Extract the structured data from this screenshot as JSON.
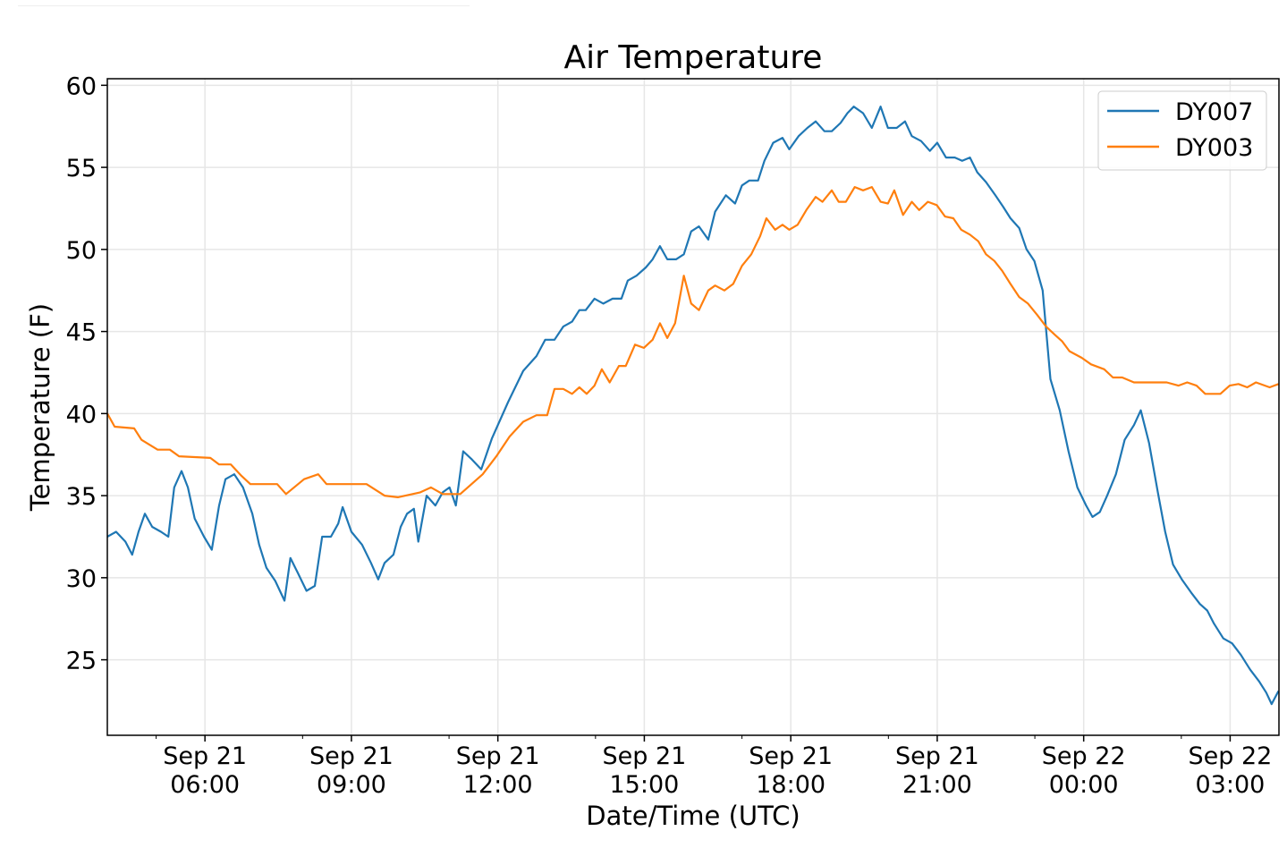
{
  "chart_data": {
    "type": "line",
    "title": "Air Temperature",
    "xlabel": "Date/Time (UTC)",
    "ylabel": "Temperature (F)",
    "x_unit": "hours since Sep 21 04:00 UTC",
    "xlim": [
      0,
      24
    ],
    "ylim": [
      20.4,
      60.4
    ],
    "grid": true,
    "legend_position": "top-right",
    "yticks": [
      25,
      30,
      35,
      40,
      45,
      50,
      55,
      60
    ],
    "xticks": [
      {
        "x": 2,
        "line1": "Sep 21",
        "line2": "06:00"
      },
      {
        "x": 5,
        "line1": "Sep 21",
        "line2": "09:00"
      },
      {
        "x": 8,
        "line1": "Sep 21",
        "line2": "12:00"
      },
      {
        "x": 11,
        "line1": "Sep 21",
        "line2": "15:00"
      },
      {
        "x": 14,
        "line1": "Sep 21",
        "line2": "18:00"
      },
      {
        "x": 17,
        "line1": "Sep 21",
        "line2": "21:00"
      },
      {
        "x": 20,
        "line1": "Sep 22",
        "line2": "00:00"
      },
      {
        "x": 23,
        "line1": "Sep 22",
        "line2": "03:00"
      }
    ],
    "series": [
      {
        "name": "DY007",
        "color": "#1f77b4",
        "x": [
          0,
          0.18,
          0.37,
          0.51,
          0.64,
          0.77,
          0.92,
          1.1,
          1.25,
          1.37,
          1.52,
          1.65,
          1.79,
          1.98,
          2.14,
          2.29,
          2.42,
          2.6,
          2.78,
          2.97,
          3.11,
          3.26,
          3.44,
          3.63,
          3.75,
          3.9,
          4.08,
          4.25,
          4.4,
          4.58,
          4.73,
          4.82,
          5.0,
          5.22,
          5.4,
          5.55,
          5.68,
          5.86,
          6.01,
          6.14,
          6.28,
          6.37,
          6.54,
          6.72,
          6.87,
          7.01,
          7.14,
          7.29,
          7.47,
          7.66,
          7.88,
          8.21,
          8.52,
          8.79,
          8.97,
          9.16,
          9.34,
          9.52,
          9.67,
          9.8,
          9.98,
          10.16,
          10.35,
          10.53,
          10.66,
          10.84,
          11.03,
          11.17,
          11.32,
          11.47,
          11.65,
          11.81,
          11.96,
          12.12,
          12.31,
          12.45,
          12.67,
          12.86,
          13.0,
          13.15,
          13.33,
          13.46,
          13.64,
          13.83,
          13.97,
          14.16,
          14.34,
          14.51,
          14.69,
          14.84,
          15.02,
          15.16,
          15.29,
          15.48,
          15.66,
          15.84,
          15.99,
          16.17,
          16.34,
          16.48,
          16.67,
          16.85,
          17.0,
          17.18,
          17.36,
          17.51,
          17.67,
          17.82,
          18.0,
          18.19,
          18.35,
          18.5,
          18.68,
          18.83,
          18.99,
          19.16,
          19.32,
          19.51,
          19.69,
          19.87,
          20.05,
          20.18,
          20.33,
          20.48,
          20.66,
          20.84,
          21.03,
          21.17,
          21.34,
          21.52,
          21.67,
          21.83,
          22.01,
          22.2,
          22.38,
          22.53,
          22.67,
          22.86,
          23.04,
          23.22,
          23.41,
          23.59,
          23.74,
          23.85,
          23.99
        ],
        "y": [
          32.5,
          32.8,
          32.2,
          31.4,
          32.8,
          33.9,
          33.1,
          32.8,
          32.5,
          35.5,
          36.5,
          35.5,
          33.6,
          32.5,
          31.7,
          34.4,
          36.0,
          36.3,
          35.5,
          33.9,
          32.0,
          30.6,
          29.8,
          28.6,
          31.2,
          30.3,
          29.2,
          29.5,
          32.5,
          32.5,
          33.3,
          34.3,
          32.8,
          32.0,
          30.9,
          29.9,
          30.9,
          31.4,
          33.1,
          33.9,
          34.2,
          32.2,
          35.0,
          34.4,
          35.2,
          35.5,
          34.4,
          37.7,
          37.2,
          36.6,
          38.5,
          40.7,
          42.6,
          43.5,
          44.5,
          44.5,
          45.3,
          45.6,
          46.3,
          46.3,
          47.0,
          46.7,
          47.0,
          47.0,
          48.1,
          48.4,
          48.9,
          49.4,
          50.2,
          49.4,
          49.4,
          49.7,
          51.1,
          51.4,
          50.6,
          52.3,
          53.3,
          52.8,
          53.9,
          54.2,
          54.2,
          55.4,
          56.5,
          56.8,
          56.1,
          56.9,
          57.4,
          57.8,
          57.2,
          57.2,
          57.7,
          58.3,
          58.7,
          58.3,
          57.4,
          58.7,
          57.4,
          57.4,
          57.8,
          56.9,
          56.6,
          56.0,
          56.5,
          55.6,
          55.6,
          55.4,
          55.6,
          54.7,
          54.1,
          53.3,
          52.6,
          51.9,
          51.3,
          50.0,
          49.3,
          47.5,
          42.1,
          40.2,
          37.7,
          35.5,
          34.4,
          33.7,
          34.0,
          35.0,
          36.3,
          38.4,
          39.3,
          40.2,
          38.2,
          35.2,
          32.8,
          30.8,
          29.9,
          29.1,
          28.4,
          28.0,
          27.2,
          26.3,
          26.0,
          25.3,
          24.4,
          23.7,
          23.0,
          22.3,
          23.1
        ]
      },
      {
        "name": "DY003",
        "color": "#ff7f0e",
        "x": [
          0,
          0.15,
          0.55,
          0.7,
          1.03,
          1.28,
          1.47,
          2.11,
          2.29,
          2.53,
          2.75,
          2.93,
          3.48,
          3.66,
          4.03,
          4.32,
          4.49,
          5.31,
          5.68,
          5.95,
          6.41,
          6.63,
          6.87,
          7.23,
          7.69,
          7.97,
          8.24,
          8.52,
          8.79,
          9.01,
          9.16,
          9.34,
          9.52,
          9.67,
          9.82,
          9.98,
          10.13,
          10.29,
          10.48,
          10.62,
          10.81,
          10.99,
          11.17,
          11.32,
          11.47,
          11.63,
          11.81,
          11.96,
          12.12,
          12.31,
          12.45,
          12.64,
          12.82,
          13.0,
          13.19,
          13.37,
          13.5,
          13.68,
          13.83,
          13.97,
          14.14,
          14.32,
          14.51,
          14.65,
          14.84,
          14.98,
          15.13,
          15.31,
          15.48,
          15.66,
          15.84,
          15.99,
          16.12,
          16.3,
          16.48,
          16.63,
          16.81,
          16.99,
          17.16,
          17.33,
          17.49,
          17.67,
          17.84,
          18.0,
          18.17,
          18.33,
          18.5,
          18.68,
          18.86,
          19.05,
          19.23,
          19.41,
          19.56,
          19.71,
          19.96,
          20.15,
          20.42,
          20.6,
          20.79,
          21.03,
          21.7,
          21.94,
          22.12,
          22.31,
          22.49,
          22.8,
          22.99,
          23.17,
          23.35,
          23.53,
          23.81,
          23.99
        ],
        "y": [
          40.0,
          39.2,
          39.1,
          38.4,
          37.8,
          37.8,
          37.4,
          37.3,
          36.9,
          36.9,
          36.2,
          35.7,
          35.7,
          35.1,
          36.0,
          36.3,
          35.7,
          35.7,
          35.0,
          34.9,
          35.2,
          35.5,
          35.1,
          35.1,
          36.3,
          37.4,
          38.6,
          39.5,
          39.9,
          39.9,
          41.5,
          41.5,
          41.2,
          41.6,
          41.2,
          41.7,
          42.7,
          41.9,
          42.9,
          42.9,
          44.2,
          44.0,
          44.5,
          45.5,
          44.6,
          45.5,
          48.4,
          46.7,
          46.3,
          47.5,
          47.8,
          47.5,
          47.9,
          49.0,
          49.7,
          50.8,
          51.9,
          51.2,
          51.5,
          51.2,
          51.5,
          52.4,
          53.2,
          52.9,
          53.6,
          52.9,
          52.9,
          53.8,
          53.6,
          53.8,
          52.9,
          52.8,
          53.6,
          52.1,
          52.9,
          52.4,
          52.9,
          52.7,
          52.0,
          51.9,
          51.2,
          50.9,
          50.5,
          49.7,
          49.3,
          48.7,
          47.9,
          47.1,
          46.7,
          46.0,
          45.3,
          44.8,
          44.4,
          43.8,
          43.4,
          43.0,
          42.7,
          42.2,
          42.2,
          41.9,
          41.9,
          41.7,
          41.9,
          41.7,
          41.2,
          41.2,
          41.7,
          41.8,
          41.6,
          41.9,
          41.6,
          41.8
        ]
      }
    ]
  }
}
